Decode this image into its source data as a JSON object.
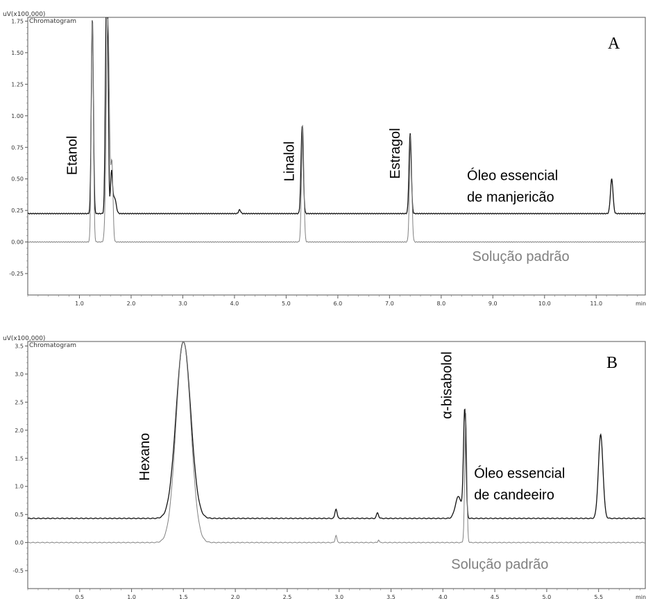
{
  "chart_data": [
    {
      "type": "line",
      "panel_label": "A",
      "frame_title": "Chromatogram",
      "y_unit_label": "uV(x100,000)",
      "x_unit_label": "min",
      "xlim": [
        0.0,
        11.95
      ],
      "ylim": [
        -0.42,
        1.78
      ],
      "x_ticks": [
        1.0,
        2.0,
        3.0,
        4.0,
        5.0,
        6.0,
        7.0,
        8.0,
        9.0,
        10.0,
        11.0
      ],
      "x_tick_labels": [
        "1.0",
        "2.0",
        "3.0",
        "4.0",
        "5.0",
        "6.0",
        "7.0",
        "8.0",
        "9.0",
        "10.0",
        "11.0"
      ],
      "y_ticks": [
        -0.25,
        0.0,
        0.25,
        0.5,
        0.75,
        1.0,
        1.25,
        1.5,
        1.75
      ],
      "y_tick_labels": [
        "-0.25",
        "0.00",
        "0.25",
        "0.50",
        "0.75",
        "1.00",
        "1.25",
        "1.50",
        "1.75"
      ],
      "grid": false,
      "series": [
        {
          "name": "Óleo essencial de manjericão",
          "color": "#111111",
          "baseline": 0.225,
          "peaks": [
            {
              "x": 1.25,
              "y": 1.78,
              "w": 0.02
            },
            {
              "x": 1.52,
              "y": 1.78,
              "w": 0.02
            },
            {
              "x": 1.55,
              "y": 1.25,
              "w": 0.015
            },
            {
              "x": 1.62,
              "y": 0.55,
              "w": 0.02
            },
            {
              "x": 1.68,
              "y": 0.35,
              "w": 0.03
            },
            {
              "x": 4.1,
              "y": 0.255,
              "w": 0.02
            },
            {
              "x": 5.31,
              "y": 0.92,
              "w": 0.022
            },
            {
              "x": 7.4,
              "y": 0.86,
              "w": 0.022
            },
            {
              "x": 11.3,
              "y": 0.5,
              "w": 0.025
            }
          ]
        },
        {
          "name": "Solução padrão",
          "color": "#808080",
          "baseline": 0.0,
          "peaks": [
            {
              "x": 1.25,
              "y": 1.78,
              "w": 0.02
            },
            {
              "x": 1.55,
              "y": 1.78,
              "w": 0.03
            },
            {
              "x": 1.63,
              "y": 0.6,
              "w": 0.02
            },
            {
              "x": 5.32,
              "y": 0.93,
              "w": 0.022
            },
            {
              "x": 7.41,
              "y": 0.85,
              "w": 0.022
            }
          ]
        }
      ],
      "annotations": [
        {
          "text": "Etanol",
          "x": 0.95,
          "y": 0.53,
          "rotate": true,
          "color": "#000000"
        },
        {
          "text": "Linalol",
          "x": 5.15,
          "y": 0.48,
          "rotate": true,
          "color": "#000000"
        },
        {
          "text": "Estragol",
          "x": 7.2,
          "y": 0.5,
          "rotate": true,
          "color": "#000000"
        },
        {
          "text": "Óleo essencial",
          "x": 8.5,
          "y": 0.49,
          "rotate": false,
          "color": "#000000"
        },
        {
          "text": "de manjericão",
          "x": 8.5,
          "y": 0.32,
          "rotate": false,
          "color": "#000000"
        },
        {
          "text": "Solução padrão",
          "x": 8.6,
          "y": -0.15,
          "rotate": false,
          "color": "#808080"
        }
      ]
    },
    {
      "type": "line",
      "panel_label": "B",
      "frame_title": "Chromatogram",
      "y_unit_label": "uV(x100,000)",
      "x_unit_label": "min",
      "xlim": [
        0.0,
        5.95
      ],
      "ylim": [
        -0.82,
        3.58
      ],
      "x_ticks": [
        0.5,
        1.0,
        1.5,
        2.0,
        2.5,
        3.0,
        3.5,
        4.0,
        4.5,
        5.0,
        5.5
      ],
      "x_tick_labels": [
        "0.5",
        "1.0",
        "1.5",
        "2.0",
        "2.5",
        "3.0",
        "3.5",
        "4.0",
        "4.5",
        "5.0",
        "5.5"
      ],
      "y_ticks": [
        -0.5,
        0.0,
        0.5,
        1.0,
        1.5,
        2.0,
        2.5,
        3.0,
        3.5
      ],
      "y_tick_labels": [
        "-0.5",
        "0.0",
        "0.5",
        "1.0",
        "1.5",
        "2.0",
        "2.5",
        "3.0",
        "3.5"
      ],
      "grid": false,
      "series": [
        {
          "name": "Óleo essencial de candeeiro",
          "color": "#111111",
          "baseline": 0.43,
          "peaks": [
            {
              "x": 1.5,
              "y": 3.58,
              "w": 0.07
            },
            {
              "x": 2.97,
              "y": 0.6,
              "w": 0.01
            },
            {
              "x": 3.37,
              "y": 0.53,
              "w": 0.01
            },
            {
              "x": 4.15,
              "y": 0.82,
              "w": 0.03
            },
            {
              "x": 4.21,
              "y": 2.35,
              "w": 0.012
            },
            {
              "x": 5.52,
              "y": 1.92,
              "w": 0.022
            }
          ]
        },
        {
          "name": "Solução padrão",
          "color": "#808080",
          "baseline": 0.0,
          "peaks": [
            {
              "x": 1.5,
              "y": 3.58,
              "w": 0.07
            },
            {
              "x": 2.97,
              "y": 0.13,
              "w": 0.008
            },
            {
              "x": 3.38,
              "y": 0.05,
              "w": 0.006
            },
            {
              "x": 4.22,
              "y": 2.3,
              "w": 0.01
            }
          ]
        }
      ],
      "annotations": [
        {
          "text": "Hexano",
          "x": 1.17,
          "y": 1.1,
          "rotate": true,
          "color": "#000000"
        },
        {
          "text": "α-bisabolol",
          "x": 4.08,
          "y": 2.2,
          "rotate": true,
          "color": "#000000"
        },
        {
          "text": "Óleo essencial",
          "x": 4.3,
          "y": 1.15,
          "rotate": false,
          "color": "#000000"
        },
        {
          "text": "de candeeiro",
          "x": 4.3,
          "y": 0.77,
          "rotate": false,
          "color": "#000000"
        },
        {
          "text": "Solução padrão",
          "x": 4.08,
          "y": -0.47,
          "rotate": false,
          "color": "#808080"
        }
      ]
    }
  ]
}
